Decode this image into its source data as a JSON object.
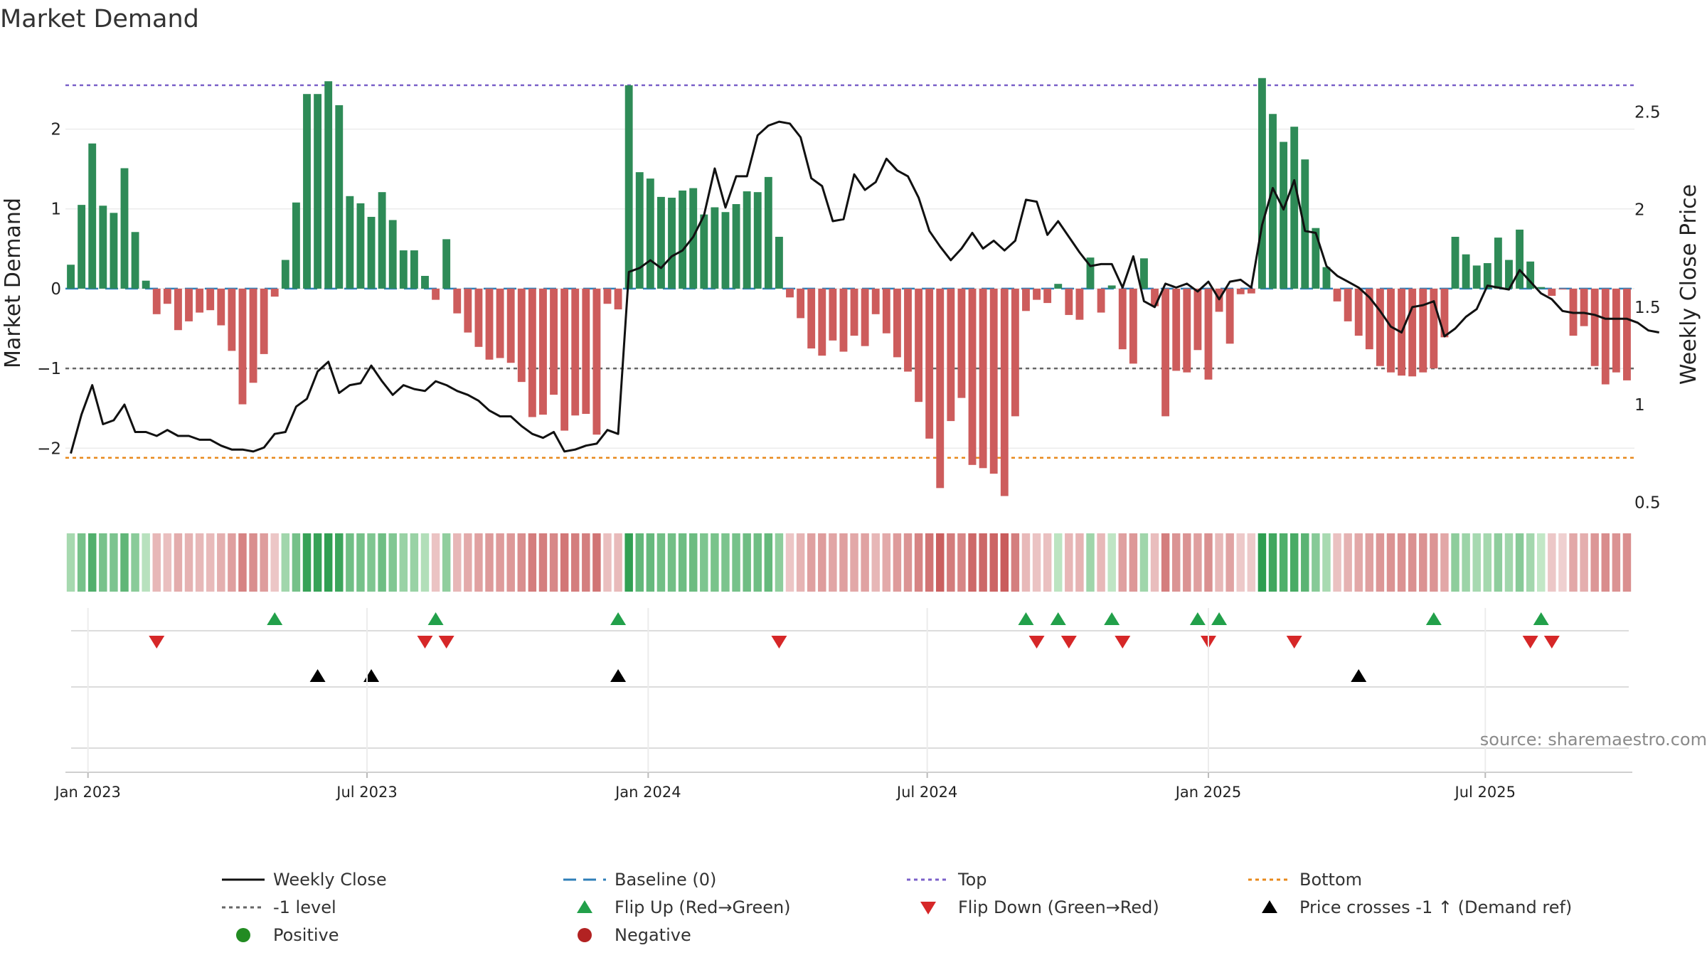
{
  "chart_data": {
    "type": "bar",
    "title": "Market Demand",
    "ylabel_left": "Market Demand",
    "ylabel_right": "Weekly Close Price",
    "ylim_left": [
      -2.8,
      2.95
    ],
    "ylim_right": [
      0.45,
      2.8
    ],
    "yticks_left": [
      {
        "value": 2,
        "label": "2"
      },
      {
        "value": 1,
        "label": "1"
      },
      {
        "value": 0,
        "label": "0"
      },
      {
        "value": -1,
        "label": "−1"
      },
      {
        "value": -2,
        "label": "−2"
      }
    ],
    "yticks_right": [
      {
        "value": 2.5,
        "label": "2.5"
      },
      {
        "value": 2.0,
        "label": "2"
      },
      {
        "value": 1.5,
        "label": "1.5"
      },
      {
        "value": 1.0,
        "label": "1"
      },
      {
        "value": 0.5,
        "label": "0.5"
      }
    ],
    "xticks": [
      {
        "week": 1.6,
        "label": "Jan 2023"
      },
      {
        "week": 27.6,
        "label": "Jul 2023"
      },
      {
        "week": 53.8,
        "label": "Jan 2024"
      },
      {
        "week": 79.8,
        "label": "Jul 2024"
      },
      {
        "week": 106,
        "label": "Jan 2025"
      },
      {
        "week": 131.8,
        "label": "Jul 2025"
      }
    ],
    "reference_lines": {
      "top": 2.55,
      "bottom": -2.12,
      "minus_one": -1,
      "baseline": 0
    },
    "demand": [
      0.3,
      1.05,
      1.82,
      1.04,
      0.95,
      1.51,
      0.71,
      0.1,
      -0.32,
      -0.19,
      -0.52,
      -0.41,
      -0.3,
      -0.27,
      -0.46,
      -0.78,
      -1.45,
      -1.18,
      -0.82,
      -0.1,
      0.36,
      1.08,
      2.44,
      2.44,
      2.6,
      2.3,
      1.16,
      1.07,
      0.9,
      1.21,
      0.86,
      0.48,
      0.48,
      0.16,
      -0.14,
      0.62,
      -0.31,
      -0.55,
      -0.73,
      -0.89,
      -0.87,
      -0.93,
      -1.17,
      -1.61,
      -1.58,
      -1.33,
      -1.78,
      -1.59,
      -1.57,
      -1.83,
      -0.19,
      -0.26,
      2.55,
      1.46,
      1.38,
      1.15,
      1.14,
      1.23,
      1.26,
      0.93,
      1.02,
      0.96,
      1.06,
      1.22,
      1.21,
      1.4,
      0.65,
      -0.11,
      -0.37,
      -0.75,
      -0.84,
      -0.65,
      -0.79,
      -0.59,
      -0.72,
      -0.32,
      -0.56,
      -0.86,
      -1.04,
      -1.42,
      -1.88,
      -2.5,
      -1.66,
      -1.37,
      -2.21,
      -2.25,
      -2.32,
      -2.6,
      -1.6,
      -0.28,
      -0.14,
      -0.18,
      0.06,
      -0.33,
      -0.39,
      0.39,
      -0.3,
      0.04,
      -0.76,
      -0.94,
      0.38,
      -0.22,
      -1.6,
      -1.03,
      -1.05,
      -0.77,
      -1.14,
      -0.29,
      -0.69,
      -0.07,
      -0.06,
      2.64,
      2.19,
      1.84,
      2.03,
      1.62,
      0.76,
      0.27,
      -0.16,
      -0.41,
      -0.59,
      -0.76,
      -0.97,
      -1.05,
      -1.09,
      -1.1,
      -1.05,
      -1.0,
      -0.61,
      0.65,
      0.43,
      0.29,
      0.32,
      0.64,
      0.36,
      0.74,
      0.34,
      0.02,
      -0.09,
      -0.01,
      -0.59,
      -0.47,
      -0.97,
      -1.2,
      -1.05,
      -1.15
    ],
    "weekly_close": [
      0.75,
      0.95,
      1.1,
      0.9,
      0.92,
      1.0,
      0.86,
      0.86,
      0.84,
      0.87,
      0.84,
      0.84,
      0.82,
      0.82,
      0.79,
      0.77,
      0.77,
      0.76,
      0.78,
      0.85,
      0.86,
      0.99,
      1.03,
      1.17,
      1.22,
      1.06,
      1.1,
      1.11,
      1.2,
      1.12,
      1.05,
      1.1,
      1.08,
      1.07,
      1.12,
      1.1,
      1.07,
      1.05,
      1.02,
      0.97,
      0.94,
      0.94,
      0.89,
      0.85,
      0.83,
      0.86,
      0.76,
      0.77,
      0.79,
      0.8,
      0.87,
      0.85,
      1.68,
      1.7,
      1.74,
      1.7,
      1.76,
      1.79,
      1.86,
      1.97,
      2.21,
      2.01,
      2.17,
      2.17,
      2.38,
      2.43,
      2.45,
      2.44,
      2.37,
      2.16,
      2.12,
      1.94,
      1.95,
      2.18,
      2.1,
      2.14,
      2.26,
      2.2,
      2.17,
      2.06,
      1.89,
      1.81,
      1.74,
      1.8,
      1.88,
      1.8,
      1.84,
      1.79,
      1.84,
      2.05,
      2.04,
      1.87,
      1.94,
      1.86,
      1.78,
      1.71,
      1.72,
      1.72,
      1.6,
      1.76,
      1.53,
      1.5,
      1.62,
      1.6,
      1.62,
      1.58,
      1.63,
      1.54,
      1.63,
      1.64,
      1.6,
      1.92,
      2.11,
      2.0,
      2.15,
      1.89,
      1.88,
      1.71,
      1.66,
      1.63,
      1.6,
      1.55,
      1.48,
      1.4,
      1.37,
      1.5,
      1.51,
      1.53,
      1.35,
      1.39,
      1.45,
      1.49,
      1.61,
      1.6,
      1.59,
      1.69,
      1.63,
      1.57,
      1.54,
      1.48,
      1.47,
      1.47,
      1.46,
      1.44,
      1.44,
      1.44,
      1.42,
      1.38,
      1.37
    ],
    "flip_up_weeks": [
      19,
      34,
      51,
      89,
      92,
      97,
      105,
      107,
      127,
      137
    ],
    "flip_down_weeks": [
      8,
      33,
      35,
      66,
      90,
      93,
      98,
      106,
      114,
      136,
      138
    ],
    "price_cross_weeks": [
      23,
      28,
      51,
      120
    ],
    "source": "source: sharemaestro.com",
    "legend": [
      {
        "label": "Weekly Close",
        "kind": "line",
        "color": "#111111",
        "dash": ""
      },
      {
        "label": "Baseline (0)",
        "kind": "line",
        "color": "#2f7fb8",
        "dash": "18,10"
      },
      {
        "label": "Top",
        "kind": "line",
        "color": "#7b61c9",
        "dash": "5,5"
      },
      {
        "label": "Bottom",
        "kind": "line",
        "color": "#e8891c",
        "dash": "5,5"
      },
      {
        "label": "-1 level",
        "kind": "line",
        "color": "#666666",
        "dash": "5,5"
      },
      {
        "label": "Flip Up (Red→Green)",
        "kind": "tri-up",
        "color": "#22a04a"
      },
      {
        "label": "Flip Down (Green→Red)",
        "kind": "tri-down",
        "color": "#d62728"
      },
      {
        "label": "Price crosses -1 ↑ (Demand ref)",
        "kind": "tri-up",
        "color": "#000000"
      },
      {
        "label": "Positive",
        "kind": "dot",
        "color": "#228b22"
      },
      {
        "label": "Negative",
        "kind": "dot",
        "color": "#b22222"
      }
    ]
  },
  "colors": {
    "positive_bar": "#2e8b57",
    "negative_bar": "#cd5c5c",
    "line": "#111111"
  }
}
